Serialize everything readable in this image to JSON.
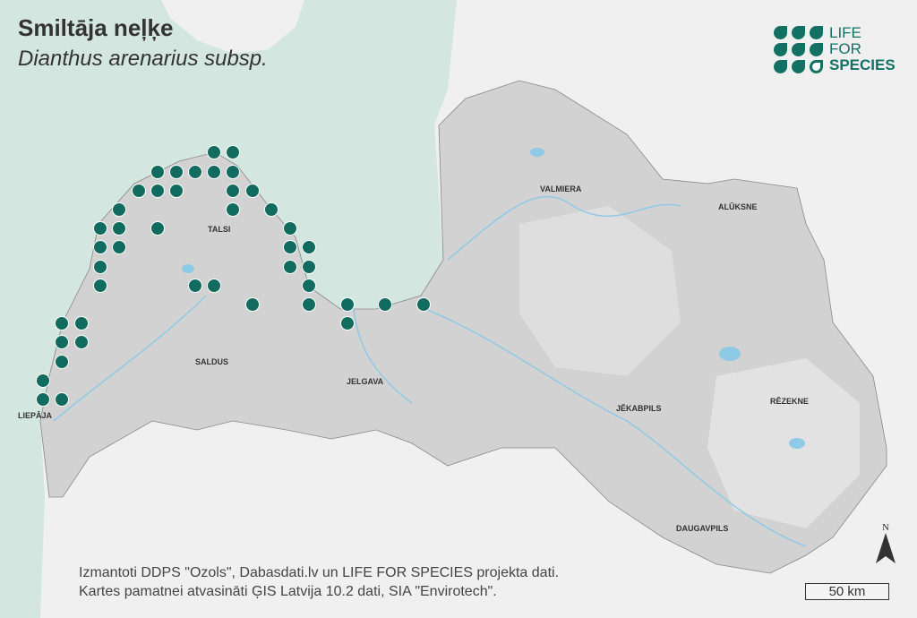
{
  "title": "Smiltāja neļķe",
  "subtitle": "Dianthus arenarius subsp.",
  "logo": {
    "line1": "LIFE",
    "line2": "FOR",
    "line3": "SPECIES"
  },
  "cities": {
    "talsi": "TALSI",
    "valmiera": "VALMIERA",
    "aluksne": "ALŪKSNE",
    "saldus": "SALDUS",
    "jelgava": "JELGAVA",
    "jekabpils": "JĒKABPILS",
    "rezekne": "RĒZEKNE",
    "liepaja": "LIEPĀJA",
    "daugavpils": "DAUGAVPILS"
  },
  "attribution": {
    "line1": "Izmantoti DDPS \"Ozols\", Dabasdati.lv un LIFE FOR SPECIES projekta dati.",
    "line2": "Kartes pamatnei atvasināti ĢIS Latvija 10.2 dati, SIA \"Envirotech\"."
  },
  "north_label": "N",
  "scale_label": "50 km",
  "colors": {
    "sea": "#d4e6e0",
    "land": "#d2d2d2",
    "occurrence": "#116b5f",
    "background": "#f0f0f0",
    "water": "#8ec9e6"
  }
}
